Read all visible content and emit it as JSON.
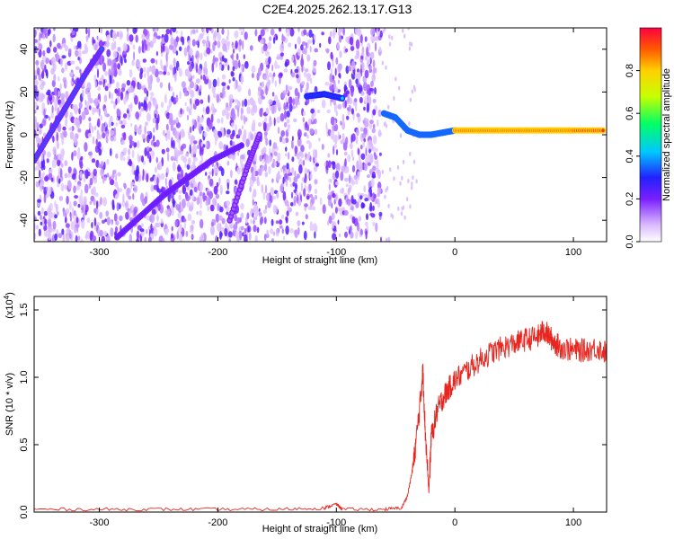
{
  "title": "C2E4.2025.262.13.17.G13",
  "colorbar": {
    "label": "Normalized spectral amplitude",
    "ticks": [
      "0.0",
      "0.2",
      "0.4",
      "0.6",
      "0.8"
    ],
    "range": [
      0,
      1
    ]
  },
  "chart_data": [
    {
      "type": "heatmap",
      "xlabel": "Height of straight line (km)",
      "ylabel": "Frequency (Hz)",
      "xlim": [
        -355,
        128
      ],
      "ylim": [
        -50,
        50
      ],
      "xticks": [
        "-300",
        "-200",
        "-100",
        "0",
        "100"
      ],
      "yticks": [
        "-40",
        "-20",
        "0",
        "20",
        "40"
      ],
      "features": [
        {
          "kind": "track",
          "x": [
            -355,
            -340,
            -325,
            -310,
            -298
          ],
          "y": [
            -12,
            2,
            16,
            30,
            40
          ],
          "level": 0.35
        },
        {
          "kind": "track",
          "x": [
            -285,
            -265,
            -245,
            -225,
            -205,
            -180
          ],
          "y": [
            -48,
            -38,
            -28,
            -20,
            -12,
            -5
          ],
          "level": 0.25
        },
        {
          "kind": "track",
          "x": [
            -190,
            -175,
            -165
          ],
          "y": [
            -40,
            -15,
            0
          ],
          "level": 0.15
        },
        {
          "kind": "track",
          "x": [
            -125,
            -110,
            -95
          ],
          "y": [
            18,
            19,
            17
          ],
          "level": 0.45
        },
        {
          "kind": "track",
          "x": [
            -60,
            -50,
            -40,
            -30,
            -20,
            -10,
            0
          ],
          "y": [
            10,
            8,
            2,
            0,
            0,
            1,
            2
          ],
          "level": 0.5
        },
        {
          "kind": "track",
          "x": [
            0,
            20,
            40,
            60,
            80,
            100,
            125
          ],
          "y": [
            2,
            2,
            2,
            2,
            2,
            2,
            2
          ],
          "level": 0.95
        }
      ],
      "noise_region_x": [
        -355,
        -62
      ],
      "gap_x": [
        -117,
        -108
      ]
    },
    {
      "type": "line",
      "xlabel": "Height of straight line (km)",
      "ylabel": "SNR (10 * v/v)",
      "ymultiplier": "(x10",
      "ymultiplier_exp": "4",
      "ymultiplier_close": ")",
      "xlim": [
        -355,
        128
      ],
      "ylim": [
        0,
        1.6
      ],
      "xticks": [
        "-300",
        "-200",
        "-100",
        "0",
        "100"
      ],
      "yticks": [
        "0.0",
        "0.5",
        "1.0",
        "1.5"
      ],
      "series": [
        {
          "color": "#e8261f",
          "x": [
            -355,
            -300,
            -250,
            -200,
            -150,
            -110,
            -100,
            -95,
            -60,
            -45,
            -40,
            -35,
            -30,
            -27,
            -25,
            -22,
            -20,
            -15,
            -10,
            -5,
            0,
            10,
            20,
            30,
            40,
            50,
            60,
            70,
            75,
            80,
            85,
            90,
            100,
            110,
            120,
            128
          ],
          "y": [
            0.02,
            0.02,
            0.02,
            0.02,
            0.02,
            0.03,
            0.06,
            0.02,
            0.02,
            0.03,
            0.12,
            0.35,
            0.75,
            1.05,
            0.6,
            0.15,
            0.55,
            0.75,
            0.85,
            0.92,
            0.98,
            1.05,
            1.12,
            1.18,
            1.22,
            1.25,
            1.28,
            1.3,
            1.35,
            1.3,
            1.25,
            1.22,
            1.2,
            1.2,
            1.22,
            1.18
          ]
        }
      ]
    }
  ]
}
